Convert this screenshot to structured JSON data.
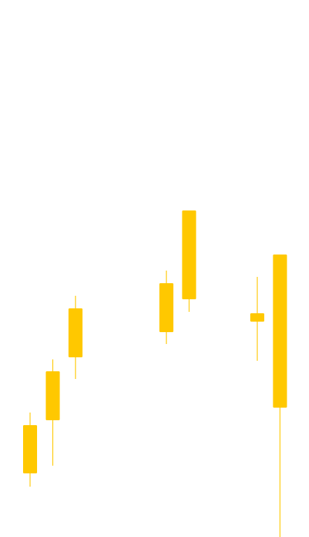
{
  "chart_data": {
    "type": "candlestick",
    "color": "#FFC800",
    "ylim": [
      0,
      768
    ],
    "axes_visible": false,
    "grid": false,
    "legend": "none",
    "candles": [
      {
        "slot": 0,
        "open": 91,
        "close": 160,
        "high": 178,
        "low": 72
      },
      {
        "slot": 1,
        "open": 167,
        "close": 237,
        "high": 254,
        "low": 102
      },
      {
        "slot": 2,
        "open": 257,
        "close": 327,
        "high": 345,
        "low": 226
      },
      {
        "slot": 6,
        "open": 293,
        "close": 363,
        "high": 381,
        "low": 276
      },
      {
        "slot": 7,
        "open": 340,
        "close": 467,
        "high": 467,
        "low": 322
      },
      {
        "slot": 10,
        "open": 308,
        "close": 320,
        "high": 372,
        "low": 252
      },
      {
        "slot": 11,
        "open": 185,
        "close": 404,
        "high": 404,
        "low": 0
      }
    ]
  }
}
